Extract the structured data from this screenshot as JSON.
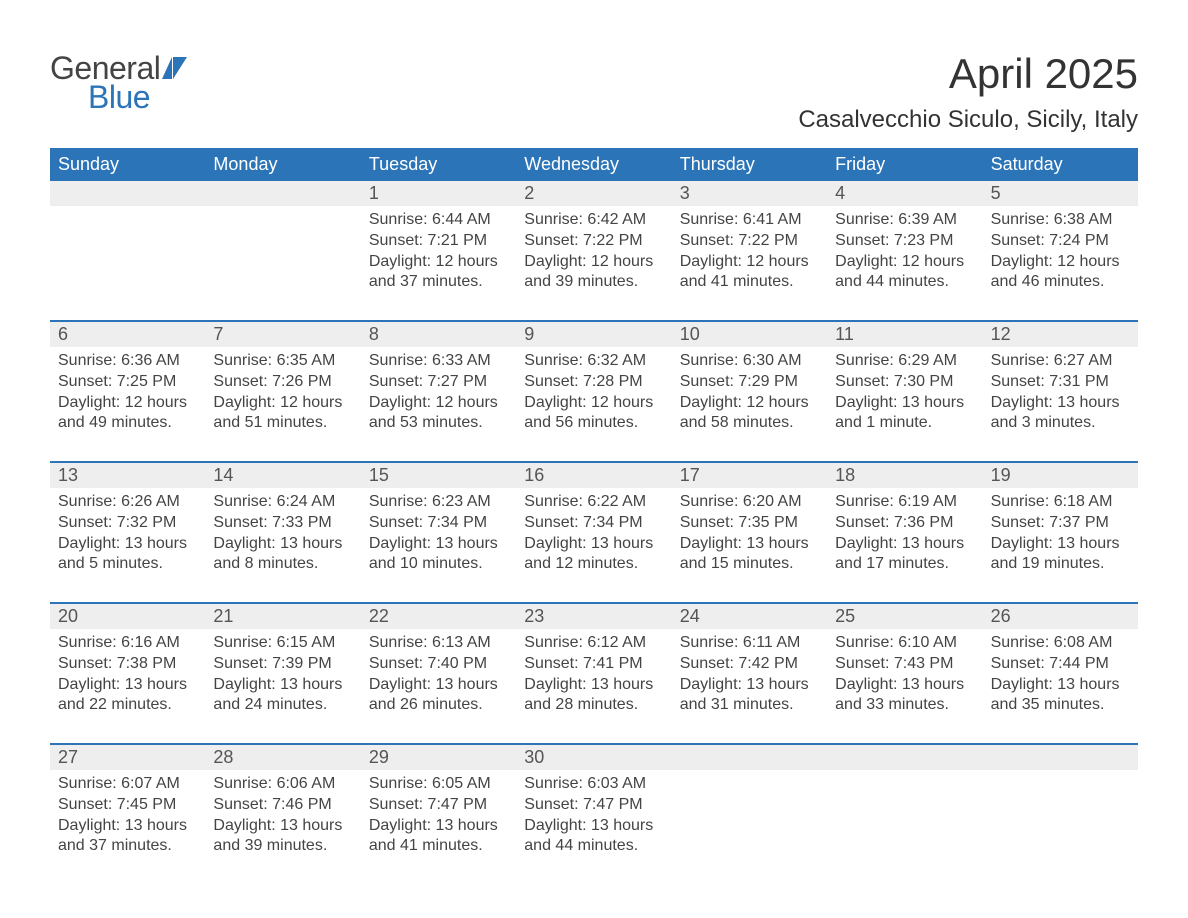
{
  "brand": {
    "word1": "General",
    "word2": "Blue"
  },
  "title": "April 2025",
  "location": "Casalvecchio Siculo, Sicily, Italy",
  "colors": {
    "accent": "#2b74b8",
    "band": "#eeeeee",
    "text": "#444444",
    "title": "#333333",
    "bg": "#ffffff"
  },
  "weekdays": [
    "Sunday",
    "Monday",
    "Tuesday",
    "Wednesday",
    "Thursday",
    "Friday",
    "Saturday"
  ],
  "weeks": [
    [
      {
        "day": "",
        "lines": []
      },
      {
        "day": "",
        "lines": []
      },
      {
        "day": "1",
        "lines": [
          "Sunrise: 6:44 AM",
          "Sunset: 7:21 PM",
          "Daylight: 12 hours and 37 minutes."
        ]
      },
      {
        "day": "2",
        "lines": [
          "Sunrise: 6:42 AM",
          "Sunset: 7:22 PM",
          "Daylight: 12 hours and 39 minutes."
        ]
      },
      {
        "day": "3",
        "lines": [
          "Sunrise: 6:41 AM",
          "Sunset: 7:22 PM",
          "Daylight: 12 hours and 41 minutes."
        ]
      },
      {
        "day": "4",
        "lines": [
          "Sunrise: 6:39 AM",
          "Sunset: 7:23 PM",
          "Daylight: 12 hours and 44 minutes."
        ]
      },
      {
        "day": "5",
        "lines": [
          "Sunrise: 6:38 AM",
          "Sunset: 7:24 PM",
          "Daylight: 12 hours and 46 minutes."
        ]
      }
    ],
    [
      {
        "day": "6",
        "lines": [
          "Sunrise: 6:36 AM",
          "Sunset: 7:25 PM",
          "Daylight: 12 hours and 49 minutes."
        ]
      },
      {
        "day": "7",
        "lines": [
          "Sunrise: 6:35 AM",
          "Sunset: 7:26 PM",
          "Daylight: 12 hours and 51 minutes."
        ]
      },
      {
        "day": "8",
        "lines": [
          "Sunrise: 6:33 AM",
          "Sunset: 7:27 PM",
          "Daylight: 12 hours and 53 minutes."
        ]
      },
      {
        "day": "9",
        "lines": [
          "Sunrise: 6:32 AM",
          "Sunset: 7:28 PM",
          "Daylight: 12 hours and 56 minutes."
        ]
      },
      {
        "day": "10",
        "lines": [
          "Sunrise: 6:30 AM",
          "Sunset: 7:29 PM",
          "Daylight: 12 hours and 58 minutes."
        ]
      },
      {
        "day": "11",
        "lines": [
          "Sunrise: 6:29 AM",
          "Sunset: 7:30 PM",
          "Daylight: 13 hours and 1 minute."
        ]
      },
      {
        "day": "12",
        "lines": [
          "Sunrise: 6:27 AM",
          "Sunset: 7:31 PM",
          "Daylight: 13 hours and 3 minutes."
        ]
      }
    ],
    [
      {
        "day": "13",
        "lines": [
          "Sunrise: 6:26 AM",
          "Sunset: 7:32 PM",
          "Daylight: 13 hours and 5 minutes."
        ]
      },
      {
        "day": "14",
        "lines": [
          "Sunrise: 6:24 AM",
          "Sunset: 7:33 PM",
          "Daylight: 13 hours and 8 minutes."
        ]
      },
      {
        "day": "15",
        "lines": [
          "Sunrise: 6:23 AM",
          "Sunset: 7:34 PM",
          "Daylight: 13 hours and 10 minutes."
        ]
      },
      {
        "day": "16",
        "lines": [
          "Sunrise: 6:22 AM",
          "Sunset: 7:34 PM",
          "Daylight: 13 hours and 12 minutes."
        ]
      },
      {
        "day": "17",
        "lines": [
          "Sunrise: 6:20 AM",
          "Sunset: 7:35 PM",
          "Daylight: 13 hours and 15 minutes."
        ]
      },
      {
        "day": "18",
        "lines": [
          "Sunrise: 6:19 AM",
          "Sunset: 7:36 PM",
          "Daylight: 13 hours and 17 minutes."
        ]
      },
      {
        "day": "19",
        "lines": [
          "Sunrise: 6:18 AM",
          "Sunset: 7:37 PM",
          "Daylight: 13 hours and 19 minutes."
        ]
      }
    ],
    [
      {
        "day": "20",
        "lines": [
          "Sunrise: 6:16 AM",
          "Sunset: 7:38 PM",
          "Daylight: 13 hours and 22 minutes."
        ]
      },
      {
        "day": "21",
        "lines": [
          "Sunrise: 6:15 AM",
          "Sunset: 7:39 PM",
          "Daylight: 13 hours and 24 minutes."
        ]
      },
      {
        "day": "22",
        "lines": [
          "Sunrise: 6:13 AM",
          "Sunset: 7:40 PM",
          "Daylight: 13 hours and 26 minutes."
        ]
      },
      {
        "day": "23",
        "lines": [
          "Sunrise: 6:12 AM",
          "Sunset: 7:41 PM",
          "Daylight: 13 hours and 28 minutes."
        ]
      },
      {
        "day": "24",
        "lines": [
          "Sunrise: 6:11 AM",
          "Sunset: 7:42 PM",
          "Daylight: 13 hours and 31 minutes."
        ]
      },
      {
        "day": "25",
        "lines": [
          "Sunrise: 6:10 AM",
          "Sunset: 7:43 PM",
          "Daylight: 13 hours and 33 minutes."
        ]
      },
      {
        "day": "26",
        "lines": [
          "Sunrise: 6:08 AM",
          "Sunset: 7:44 PM",
          "Daylight: 13 hours and 35 minutes."
        ]
      }
    ],
    [
      {
        "day": "27",
        "lines": [
          "Sunrise: 6:07 AM",
          "Sunset: 7:45 PM",
          "Daylight: 13 hours and 37 minutes."
        ]
      },
      {
        "day": "28",
        "lines": [
          "Sunrise: 6:06 AM",
          "Sunset: 7:46 PM",
          "Daylight: 13 hours and 39 minutes."
        ]
      },
      {
        "day": "29",
        "lines": [
          "Sunrise: 6:05 AM",
          "Sunset: 7:47 PM",
          "Daylight: 13 hours and 41 minutes."
        ]
      },
      {
        "day": "30",
        "lines": [
          "Sunrise: 6:03 AM",
          "Sunset: 7:47 PM",
          "Daylight: 13 hours and 44 minutes."
        ]
      },
      {
        "day": "",
        "lines": []
      },
      {
        "day": "",
        "lines": []
      },
      {
        "day": "",
        "lines": []
      }
    ]
  ]
}
